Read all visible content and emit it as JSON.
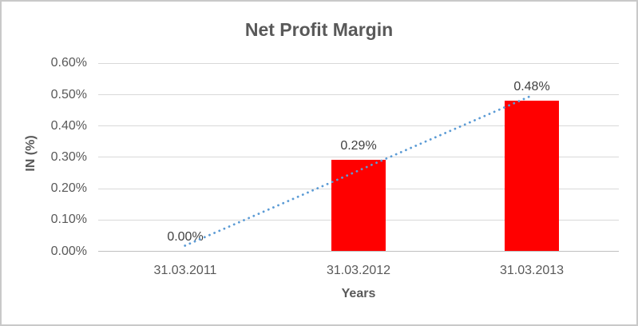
{
  "window": {
    "background": "#FFFFFF",
    "border_color": "#C9C9C9"
  },
  "chart_data": {
    "type": "bar",
    "title": "Net Profit Margin",
    "categories": [
      "31.03.2011",
      "31.03.2012",
      "31.03.2013"
    ],
    "values": [
      0.0,
      0.29,
      0.48
    ],
    "data_labels": [
      "0.00%",
      "0.29%",
      "0.48%"
    ],
    "xlabel": "Years",
    "ylabel": "IN (%)",
    "ylim": [
      0,
      0.6
    ],
    "ytick_step": 0.1,
    "ytick_labels": [
      "0.00%",
      "0.10%",
      "0.20%",
      "0.30%",
      "0.40%",
      "0.50%",
      "0.60%"
    ],
    "grid": true,
    "legend": "none",
    "bar_color": "#FF0000",
    "trendline": {
      "type": "linear",
      "style": "dotted",
      "color": "#5B9BD5"
    },
    "gridline_color": "#D9D9D9",
    "axis_line_color": "#BFBFBF",
    "text_colors": {
      "title": "#595959",
      "ticks": "#595959",
      "axis_titles": "#595959",
      "data_labels": "#404040"
    }
  }
}
